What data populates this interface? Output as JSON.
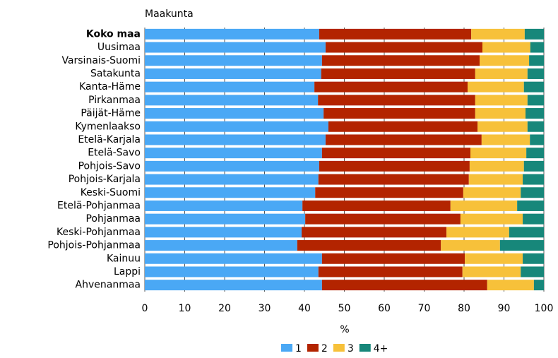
{
  "chart_data": {
    "type": "stacked_bar_horizontal",
    "y_axis_title": "Maakunta",
    "x_axis_title": "%",
    "categories": [
      "Koko maa",
      "Uusimaa",
      "Varsinais-Suomi",
      "Satakunta",
      "Kanta-Häme",
      "Pirkanmaa",
      "Päijät-Häme",
      "Kymenlaakso",
      "Etelä-Karjala",
      "Etelä-Savo",
      "Pohjois-Savo",
      "Pohjois-Karjala",
      "Keski-Suomi",
      "Etelä-Pohjanmaa",
      "Pohjanmaa",
      "Keski-Pohjanmaa",
      "Pohjois-Pohjanmaa",
      "Kainuu",
      "Lappi",
      "Ahvenanmaa"
    ],
    "series": [
      {
        "name": "1",
        "color": "#4aa8f5",
        "values": [
          43.7,
          45.3,
          44.4,
          44.2,
          42.5,
          43.4,
          44.8,
          46.0,
          45.3,
          44.4,
          43.7,
          43.5,
          42.7,
          39.5,
          40.2,
          39.3,
          38.2,
          44.4,
          43.5,
          44.4
        ]
      },
      {
        "name": "2",
        "color": "#b32400",
        "values": [
          38.1,
          39.3,
          39.5,
          38.6,
          38.4,
          39.4,
          38.0,
          37.4,
          39.1,
          37.2,
          37.7,
          37.7,
          37.1,
          37.1,
          38.9,
          36.3,
          36.0,
          35.8,
          36.1,
          41.4
        ]
      },
      {
        "name": "3",
        "color": "#f7c13a",
        "values": [
          13.4,
          12.0,
          12.4,
          13.1,
          14.1,
          13.1,
          12.6,
          12.5,
          12.1,
          14.0,
          13.6,
          13.5,
          14.4,
          16.7,
          15.6,
          15.7,
          14.8,
          14.5,
          14.6,
          11.7
        ]
      },
      {
        "name": "4+",
        "color": "#17877a",
        "values": [
          4.8,
          3.4,
          3.7,
          4.1,
          5.0,
          4.1,
          4.6,
          4.1,
          3.5,
          4.4,
          5.0,
          5.3,
          5.8,
          6.7,
          5.3,
          8.7,
          11.0,
          5.3,
          5.8,
          2.5
        ]
      }
    ],
    "xlim": [
      0,
      100
    ],
    "xticks": [
      0,
      10,
      20,
      30,
      40,
      50,
      60,
      70,
      80,
      90,
      100
    ],
    "grid": true
  }
}
